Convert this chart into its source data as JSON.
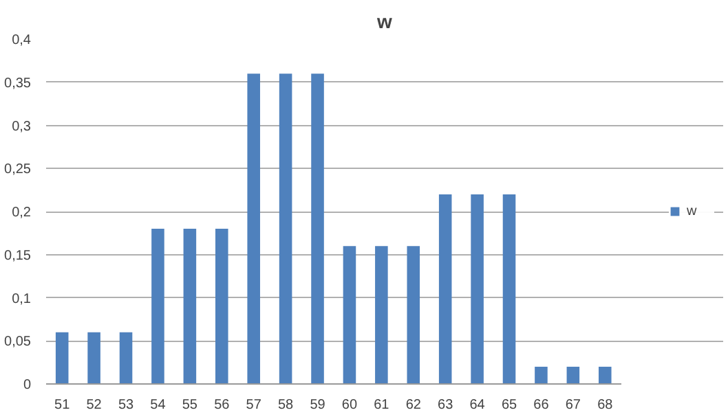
{
  "chart_data": {
    "type": "bar",
    "title": "w",
    "categories": [
      "51",
      "52",
      "53",
      "54",
      "55",
      "56",
      "57",
      "58",
      "59",
      "60",
      "61",
      "62",
      "63",
      "64",
      "65",
      "66",
      "67",
      "68"
    ],
    "series": [
      {
        "name": "w",
        "color": "#4f81bd",
        "values": [
          0.06,
          0.06,
          0.06,
          0.18,
          0.18,
          0.18,
          0.36,
          0.36,
          0.36,
          0.16,
          0.16,
          0.16,
          0.22,
          0.22,
          0.22,
          0.02,
          0.02,
          0.02
        ]
      }
    ],
    "ylim": [
      0,
      0.4
    ],
    "yticks": [
      0,
      {
        "value": 0.05,
        "label": "0,05"
      },
      {
        "value": 0.1,
        "label": "0,1"
      },
      {
        "value": 0.15,
        "label": "0,15"
      },
      {
        "value": 0.2,
        "label": "0,2"
      },
      {
        "value": 0.25,
        "label": "0,25"
      },
      {
        "value": 0.3,
        "label": "0,3"
      },
      {
        "value": 0.35,
        "label": "0,35"
      },
      {
        "value": 0.4,
        "label": "0,4"
      }
    ],
    "grid": "y",
    "legend": "right"
  }
}
